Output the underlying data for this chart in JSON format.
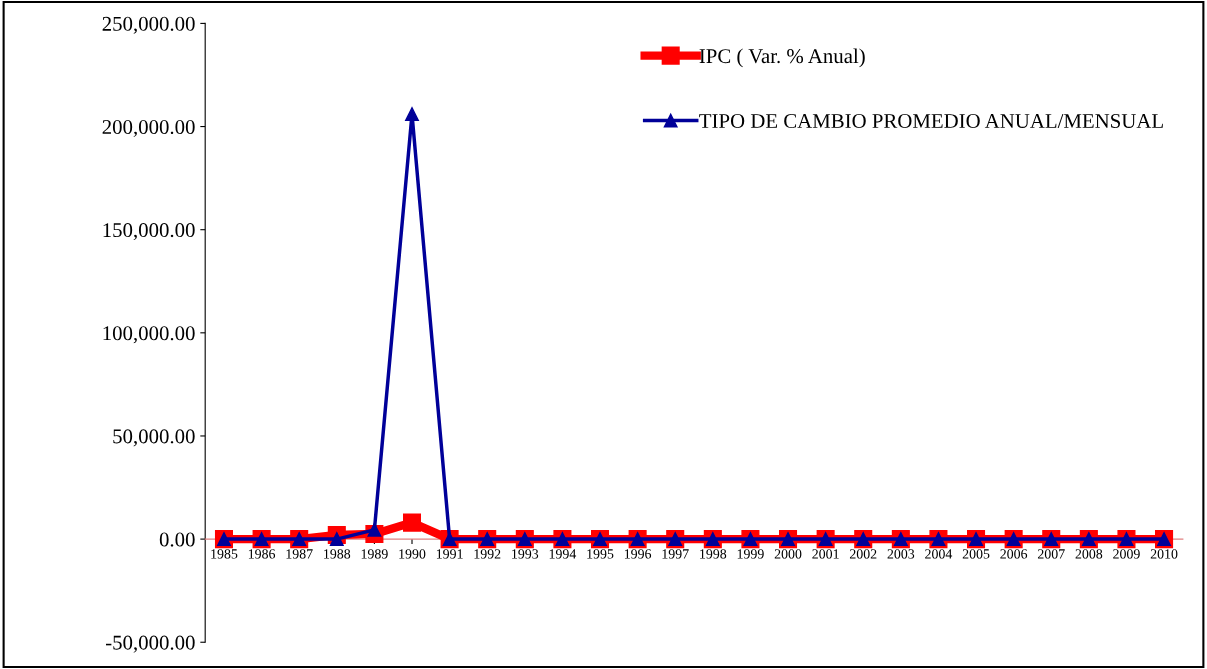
{
  "chart_data": {
    "type": "line",
    "categories": [
      "1985",
      "1986",
      "1987",
      "1988",
      "1989",
      "1990",
      "1991",
      "1992",
      "1993",
      "1994",
      "1995",
      "1996",
      "1997",
      "1998",
      "1999",
      "2000",
      "2001",
      "2002",
      "2003",
      "2004",
      "2005",
      "2006",
      "2007",
      "2008",
      "2009",
      "2010"
    ],
    "series": [
      {
        "name": "IPC ( Var. % Anual)",
        "color": "#ff0000",
        "marker": "square",
        "values": [
          0,
          0,
          0,
          2000,
          2500,
          8000,
          0,
          0,
          0,
          0,
          0,
          0,
          0,
          0,
          0,
          0,
          0,
          0,
          0,
          0,
          0,
          0,
          0,
          0,
          0,
          0
        ]
      },
      {
        "name": "TIPO DE CAMBIO PROMEDIO ANUAL/MENSUAL",
        "color": "#000099",
        "marker": "triangle",
        "values": [
          0,
          0,
          0,
          0,
          4500,
          206000,
          0,
          0,
          0,
          0,
          0,
          0,
          0,
          0,
          0,
          0,
          0,
          0,
          0,
          0,
          0,
          0,
          0,
          0,
          0,
          0
        ]
      }
    ],
    "ylim": [
      -50000,
      250000
    ],
    "yticks": [
      {
        "value": -50000,
        "label": "-50,000.00"
      },
      {
        "value": 0,
        "label": "0.00"
      },
      {
        "value": 50000,
        "label": "50,000.00"
      },
      {
        "value": 100000,
        "label": "100,000.00"
      },
      {
        "value": 150000,
        "label": "150,000.00"
      },
      {
        "value": 200000,
        "label": "200,000.00"
      },
      {
        "value": 250000,
        "label": "250,000.00"
      }
    ],
    "legend": "top right",
    "grid": false,
    "line_style": "solid"
  }
}
